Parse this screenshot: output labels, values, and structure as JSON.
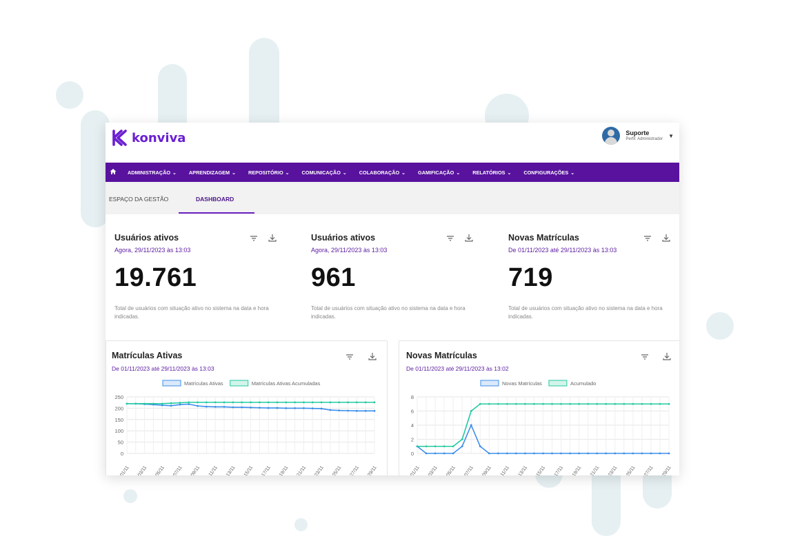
{
  "app": {
    "brand": "konviva",
    "brand_color": "#6b1fd1",
    "nav_color": "#58129e",
    "accent_color": "#5a1aa0"
  },
  "user": {
    "name": "Suporte",
    "role": "Perfil: Administrador",
    "avatar": "user-avatar-icon"
  },
  "menu": {
    "home_icon": "home-icon",
    "items": [
      {
        "label": "ADMINISTRAÇÃO"
      },
      {
        "label": "APRENDIZAGEM"
      },
      {
        "label": "REPOSITÓRIO"
      },
      {
        "label": "COMUNICAÇÃO"
      },
      {
        "label": "COLABORAÇÃO"
      },
      {
        "label": "GAMIFICAÇÃO"
      },
      {
        "label": "RELATÓRIOS"
      },
      {
        "label": "CONFIGURAÇÕES"
      }
    ]
  },
  "tabs": [
    {
      "label": "ESPAÇO DA GESTÃO",
      "active": false
    },
    {
      "label": "DASHBOARD",
      "active": true
    }
  ],
  "kpis": [
    {
      "title": "Usuários ativos",
      "subtitle": "Agora, 29/11/2023 às 13:03",
      "value": "19.761",
      "description": "Total de usuários com situação ativo no sistema na data e hora indicadas."
    },
    {
      "title": "Usuários ativos",
      "subtitle": "Agora, 29/11/2023 às 13:03",
      "value": "961",
      "description": "Total de usuários com situação ativo no sistema na data e hora indicadas."
    },
    {
      "title": "Novas Matrículas",
      "subtitle": "De 01/11/2023 até 29/11/2023 às 13:03",
      "value": "719",
      "description": "Total de usuários com situação ativo no sistema na data e hora indicadas."
    }
  ],
  "cards": [
    {
      "title": "Matrículas Ativas",
      "subtitle": "De 01/11/2023 até 29/11/2023 às 13:03"
    },
    {
      "title": "Novas Matrículas",
      "subtitle": "De 01/11/2023 até 29/11/2023 às 13:02"
    }
  ],
  "chart_data": [
    {
      "type": "line",
      "title": "",
      "x": [
        "01/11",
        "02/11",
        "03/11",
        "04/11",
        "05/11",
        "06/11",
        "07/11",
        "08/11",
        "09/11",
        "10/11",
        "11/11",
        "12/11",
        "13/11",
        "14/11",
        "15/11",
        "16/11",
        "17/11",
        "18/11",
        "19/11",
        "20/11",
        "21/11",
        "22/11",
        "23/11",
        "24/11",
        "25/11",
        "26/11",
        "27/11",
        "28/11",
        "29/11"
      ],
      "x_tick_labels": [
        "01/11",
        "03/11",
        "05/11",
        "07/11",
        "09/11",
        "11/11",
        "13/11",
        "15/11",
        "17/11",
        "19/11",
        "21/11",
        "23/11",
        "25/11",
        "27/11",
        "29/11"
      ],
      "ylim": [
        0,
        250
      ],
      "yticks": [
        0,
        50,
        100,
        150,
        200,
        250
      ],
      "grid": true,
      "legend": "top",
      "series": [
        {
          "name": "Matrículas Ativas",
          "color": "#3b8eea",
          "values": [
            220,
            220,
            218,
            216,
            213,
            211,
            216,
            218,
            210,
            207,
            206,
            206,
            204,
            204,
            203,
            202,
            201,
            201,
            200,
            200,
            200,
            199,
            198,
            192,
            190,
            189,
            188,
            188,
            188
          ]
        },
        {
          "name": "Matrículas Ativas Acumuladas",
          "color": "#22c9a0",
          "values": [
            220,
            220,
            220,
            220,
            220,
            222,
            224,
            226,
            226,
            226,
            226,
            226,
            226,
            226,
            226,
            226,
            226,
            226,
            226,
            226,
            226,
            226,
            226,
            226,
            226,
            226,
            226,
            226,
            226
          ]
        }
      ]
    },
    {
      "type": "line",
      "title": "",
      "x": [
        "01/11",
        "02/11",
        "03/11",
        "04/11",
        "05/11",
        "06/11",
        "07/11",
        "08/11",
        "09/11",
        "10/11",
        "11/11",
        "12/11",
        "13/11",
        "14/11",
        "15/11",
        "16/11",
        "17/11",
        "18/11",
        "19/11",
        "20/11",
        "21/11",
        "22/11",
        "23/11",
        "24/11",
        "25/11",
        "26/11",
        "27/11",
        "28/11",
        "29/11"
      ],
      "x_tick_labels": [
        "01/11",
        "03/11",
        "05/11",
        "07/11",
        "09/11",
        "11/11",
        "13/11",
        "15/11",
        "17/11",
        "19/11",
        "21/11",
        "23/11",
        "25/11",
        "27/11",
        "29/11"
      ],
      "ylim": [
        0,
        8
      ],
      "yticks": [
        0,
        2,
        4,
        6,
        8
      ],
      "grid": true,
      "legend": "top",
      "series": [
        {
          "name": "Novas Matrículas",
          "color": "#3b8eea",
          "values": [
            1,
            0,
            0,
            0,
            0,
            1,
            4,
            1,
            0,
            0,
            0,
            0,
            0,
            0,
            0,
            0,
            0,
            0,
            0,
            0,
            0,
            0,
            0,
            0,
            0,
            0,
            0,
            0,
            0
          ]
        },
        {
          "name": "Acumulado",
          "color": "#22c9a0",
          "values": [
            1,
            1,
            1,
            1,
            1,
            2,
            6,
            7,
            7,
            7,
            7,
            7,
            7,
            7,
            7,
            7,
            7,
            7,
            7,
            7,
            7,
            7,
            7,
            7,
            7,
            7,
            7,
            7,
            7
          ]
        }
      ]
    }
  ]
}
